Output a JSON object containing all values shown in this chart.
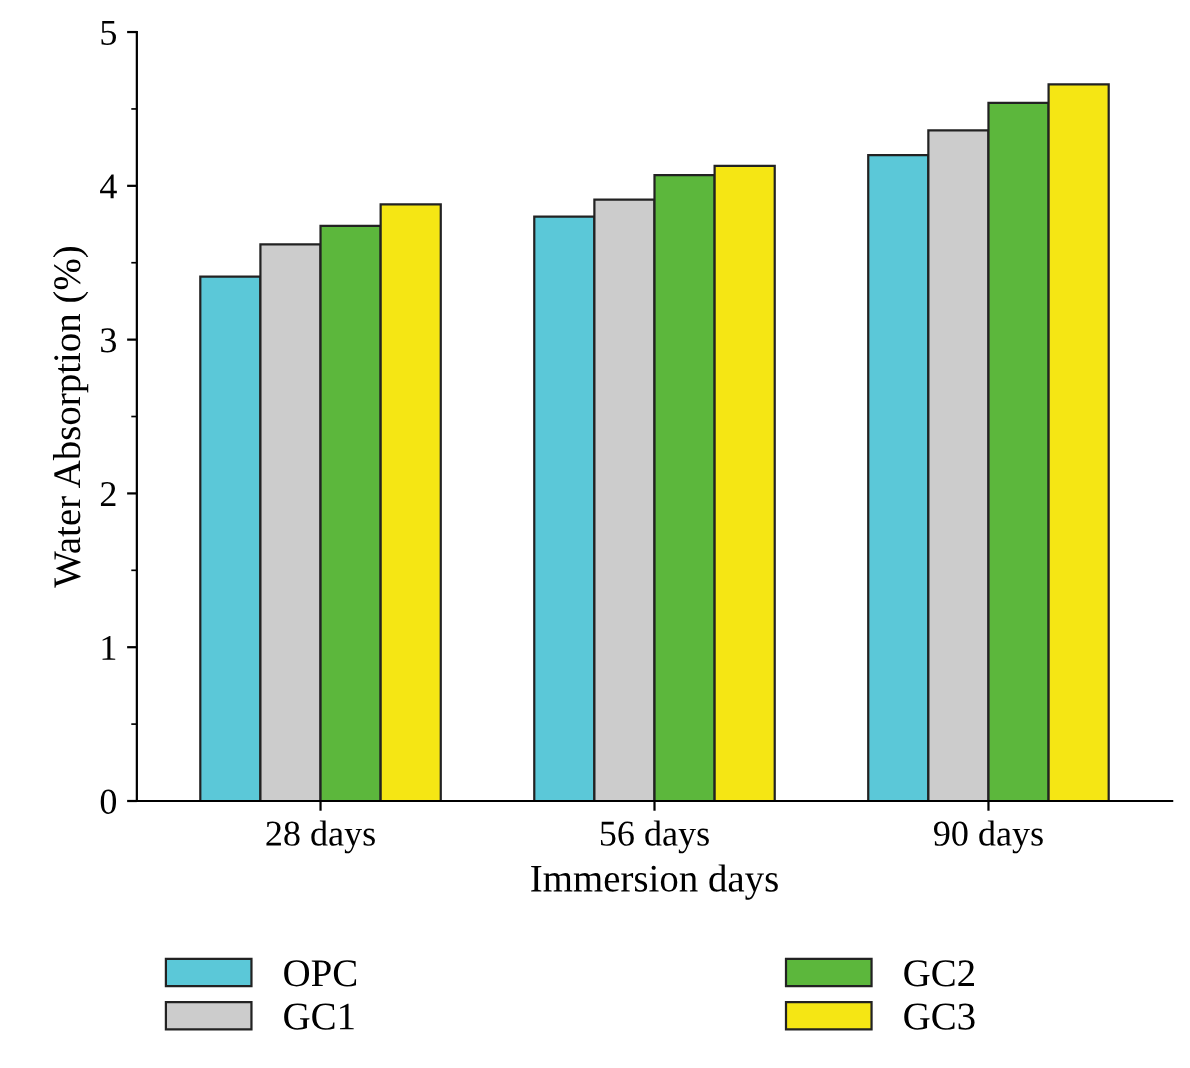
{
  "chart_data": {
    "type": "bar",
    "xlabel": "Immersion days",
    "ylabel": "Water Absorption (%)",
    "categories": [
      "28 days",
      "56 days",
      "90 days"
    ],
    "series": [
      {
        "name": "OPC",
        "color": "#5bc8d8",
        "values": [
          3.41,
          3.8,
          4.2
        ]
      },
      {
        "name": "GC1",
        "color": "#cccccc",
        "values": [
          3.62,
          3.91,
          4.36
        ]
      },
      {
        "name": "GC2",
        "color": "#5cb73c",
        "values": [
          3.74,
          4.07,
          4.54
        ]
      },
      {
        "name": "GC3",
        "color": "#f5e614",
        "values": [
          3.88,
          4.13,
          4.66
        ]
      }
    ],
    "ylim": [
      0,
      5
    ],
    "yticks": [
      0,
      1,
      2,
      3,
      4,
      5
    ],
    "grid": false,
    "legend": "bottom"
  }
}
